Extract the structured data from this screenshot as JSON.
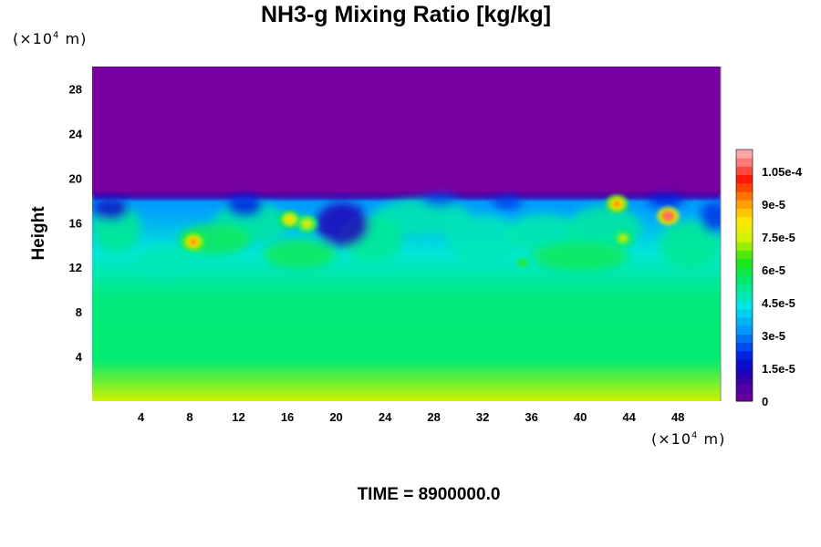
{
  "chart_data": {
    "type": "heatmap",
    "title": "NH3-g Mixing Ratio [kg/kg]",
    "ylabel": "Height",
    "x_unit": "(×10⁴ m)",
    "y_unit": "(×10⁴ m)",
    "x_ticks": [
      4,
      8,
      12,
      16,
      20,
      24,
      28,
      32,
      36,
      40,
      44,
      48
    ],
    "y_ticks": [
      4,
      8,
      12,
      16,
      20,
      24,
      28
    ],
    "xlim": [
      0,
      51.5
    ],
    "ylim": [
      0,
      30
    ],
    "colorbar": {
      "labels": [
        "0",
        "1.5e-5",
        "3e-5",
        "4.5e-5",
        "6e-5",
        "7.5e-5",
        "9e-5",
        "1.05e-4"
      ],
      "values": [
        0,
        1.5e-05,
        3e-05,
        4.5e-05,
        6e-05,
        7.5e-05,
        9e-05,
        0.000105
      ],
      "min": 0,
      "max": 0.000115
    },
    "field_summary": {
      "empty_above_height": 18.5,
      "near_surface_value": 7.5e-05,
      "lower_layer_value": 5.5e-05,
      "mid_layer_value": 4.5e-05,
      "upper_layer_value": 3.5e-05,
      "depleted_eddy_values": 1.2e-05,
      "local_maxima": [
        {
          "x": 8.3,
          "y": 14.3,
          "value": 9.5e-05
        },
        {
          "x": 16.2,
          "y": 16.3,
          "value": 8.5e-05
        },
        {
          "x": 17.6,
          "y": 15.9,
          "value": 8e-05
        },
        {
          "x": 43.0,
          "y": 17.7,
          "value": 9.5e-05
        },
        {
          "x": 47.2,
          "y": 16.6,
          "value": 0.00011
        },
        {
          "x": 35.3,
          "y": 12.4,
          "value": 6.5e-05
        },
        {
          "x": 43.5,
          "y": 14.6,
          "value": 7.5e-05
        }
      ]
    }
  },
  "time_label": "TIME = 8900000.0"
}
